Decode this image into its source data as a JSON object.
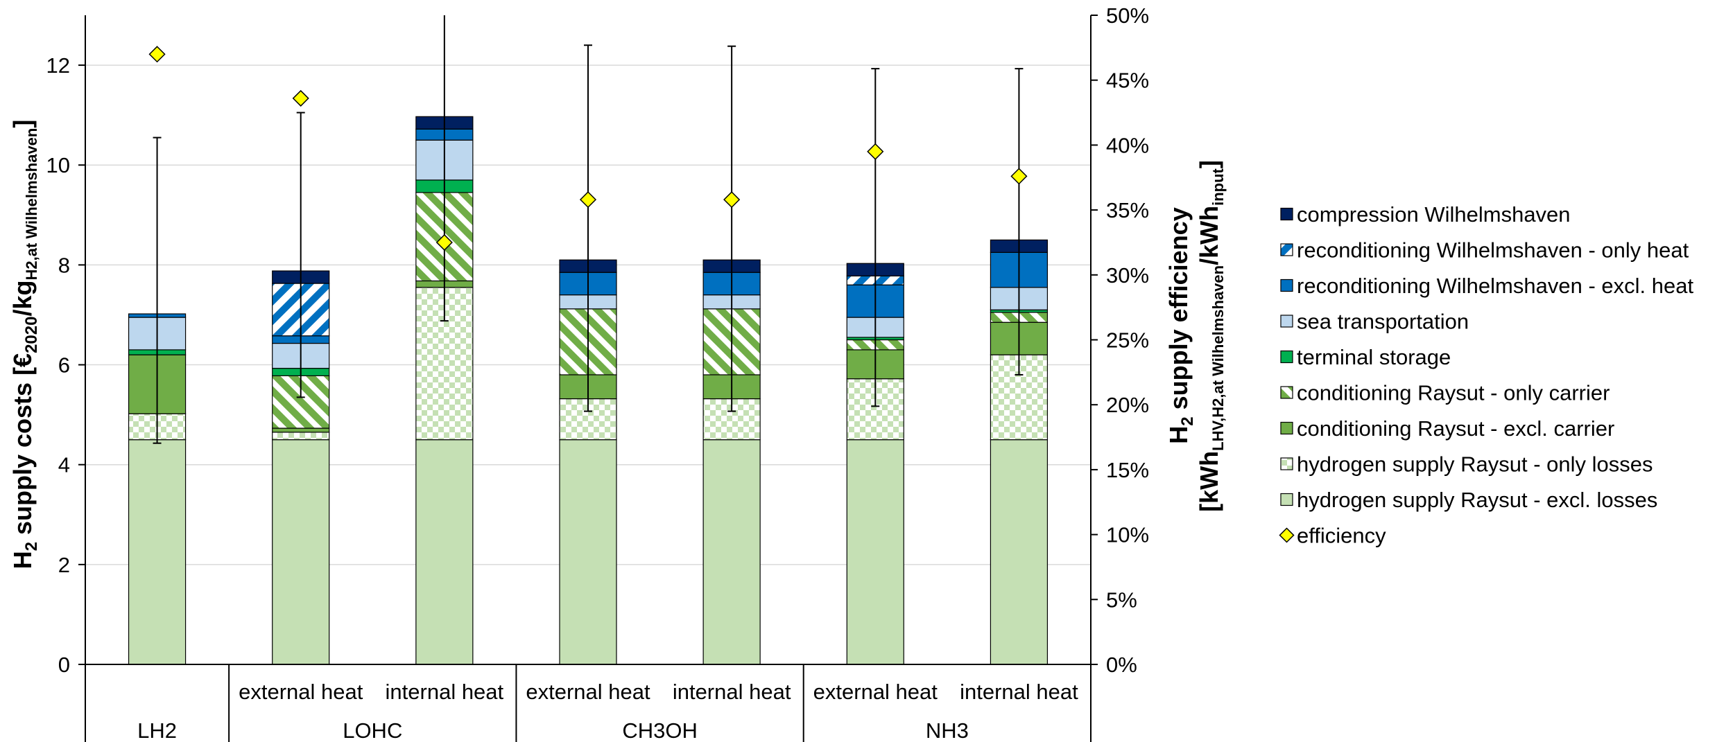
{
  "chart_data": {
    "type": "bar",
    "stacked": true,
    "bars": [
      {
        "group": "LH2",
        "subgroup": ""
      },
      {
        "group": "LOHC",
        "subgroup": "external heat"
      },
      {
        "group": "LOHC",
        "subgroup": "internal heat"
      },
      {
        "group": "CH3OH",
        "subgroup": "external heat"
      },
      {
        "group": "CH3OH",
        "subgroup": "internal heat"
      },
      {
        "group": "NH3",
        "subgroup": "external heat"
      },
      {
        "group": "NH3",
        "subgroup": "internal heat"
      }
    ],
    "groups": [
      {
        "label": "LH2",
        "span": 1
      },
      {
        "label": "LOHC",
        "span": 2
      },
      {
        "label": "CH3OH",
        "span": 2
      },
      {
        "label": "NH3",
        "span": 2
      }
    ],
    "series": [
      {
        "name": "hydrogen supply Raysut - excl. losses",
        "color": "#c5e0b4",
        "pattern": "solid",
        "values": [
          4.5,
          4.5,
          4.5,
          4.5,
          4.5,
          4.5,
          4.5
        ]
      },
      {
        "name": "hydrogen supply Raysut - only losses",
        "color": "#c5e0b4",
        "pattern": "checker",
        "values": [
          0.52,
          0.15,
          3.05,
          0.82,
          0.82,
          1.22,
          1.7
        ]
      },
      {
        "name": "conditioning Raysut - excl. carrier",
        "color": "#70ad47",
        "pattern": "solid",
        "values": [
          1.18,
          0.08,
          0.13,
          0.48,
          0.48,
          0.58,
          0.65
        ]
      },
      {
        "name": "conditioning Raysut - only carrier",
        "color": "#70ad47",
        "pattern": "diagonal",
        "values": [
          0,
          1.05,
          1.77,
          1.32,
          1.32,
          0.2,
          0.2
        ]
      },
      {
        "name": "terminal storage",
        "color": "#00b050",
        "pattern": "solid",
        "values": [
          0.1,
          0.15,
          0.25,
          0,
          0,
          0.05,
          0.05
        ]
      },
      {
        "name": "sea transportation",
        "color": "#bdd7ee",
        "pattern": "solid",
        "values": [
          0.65,
          0.5,
          0.8,
          0.28,
          0.28,
          0.4,
          0.45
        ]
      },
      {
        "name": "reconditioning Wilhelmshaven - excl. heat",
        "color": "#0070c0",
        "pattern": "solid",
        "values": [
          0.07,
          0.15,
          0.22,
          0.45,
          0.45,
          0.65,
          0.7
        ]
      },
      {
        "name": "reconditioning Wilhelmshaven - only heat",
        "color": "#0070c0",
        "pattern": "hatch-light",
        "values": [
          0,
          1.05,
          0,
          0,
          0,
          0.18,
          0
        ]
      },
      {
        "name": "compression Wilhelmshaven",
        "color": "#002060",
        "pattern": "solid",
        "values": [
          0,
          0.25,
          0.25,
          0.25,
          0.25,
          0.25,
          0.25
        ]
      }
    ],
    "error_bars": [
      {
        "low": 4.43,
        "high": 10.55
      },
      {
        "low": 5.35,
        "high": 11.05
      },
      {
        "low": 6.88,
        "high": 13.0
      },
      {
        "low": 5.07,
        "high": 12.4
      },
      {
        "low": 5.07,
        "high": 12.38
      },
      {
        "low": 5.17,
        "high": 11.93
      },
      {
        "low": 5.8,
        "high": 11.93
      }
    ],
    "efficiency": {
      "name": "efficiency",
      "color": "#ffff00",
      "values": [
        47,
        43.6,
        32.5,
        35.8,
        35.8,
        39.5,
        37.6
      ]
    },
    "y_left": {
      "min": 0,
      "max": 13,
      "ticks": [
        "0",
        "2",
        "4",
        "6",
        "8",
        "10",
        "12"
      ]
    },
    "y_right": {
      "min": 0,
      "max": 50,
      "ticks": [
        "0%",
        "5%",
        "10%",
        "15%",
        "20%",
        "25%",
        "30%",
        "35%",
        "40%",
        "45%",
        "50%"
      ]
    },
    "ylabel_left": {
      "main": "H",
      "sub1": "2",
      "mid": " supply costs [€",
      "sub2": "2020",
      "mid2": "/kg",
      "sub3": "H2,at Wilhelmshaven",
      "end": "]"
    },
    "ylabel_right": {
      "line1_main": "H",
      "line1_sub": "2",
      "line1_end": " supply efficiency",
      "line2_start": "[kWh",
      "line2_sub": "LHV,H2,at Wilhelmshaven",
      "line2_mid": "/kWh",
      "line2_sub2": "input",
      "line2_end": "]"
    },
    "grid": true,
    "legend_position": "right",
    "legend_order": [
      "compression Wilhelmshaven",
      "reconditioning Wilhelmshaven - only heat",
      "reconditioning Wilhelmshaven - excl. heat",
      "sea transportation",
      "terminal storage",
      "conditioning Raysut - only carrier",
      "conditioning Raysut - excl. carrier",
      "hydrogen supply Raysut - only losses",
      "hydrogen supply Raysut - excl. losses",
      "efficiency"
    ]
  }
}
